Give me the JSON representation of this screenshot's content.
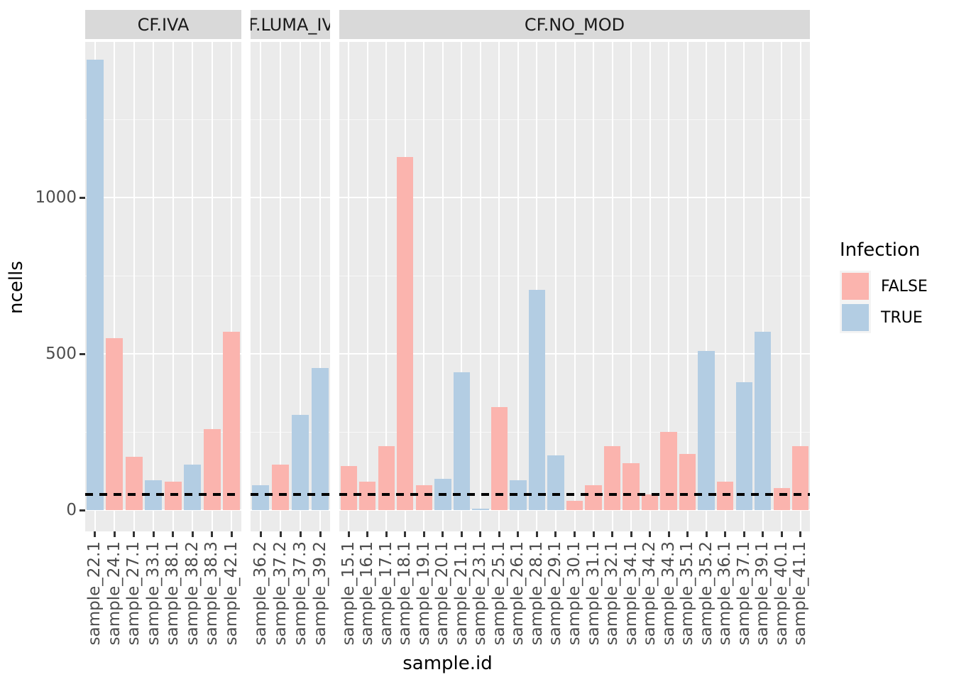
{
  "chart_data": {
    "type": "bar",
    "title": "",
    "xlabel": "sample.id",
    "ylabel": "ncells",
    "yticks": [
      0,
      500,
      1000
    ],
    "ylim": [
      -70,
      1500
    ],
    "grid": true,
    "legend_title": "Infection",
    "legend_entries": [
      "FALSE",
      "TRUE"
    ],
    "legend_position": "right",
    "series_colors": {
      "FALSE": "#FBB4AE",
      "TRUE": "#B3CDE3"
    },
    "hline": {
      "value": 50,
      "style": "dashed",
      "color": "#000000"
    },
    "facets": [
      {
        "label": "CF.IVA",
        "bars": [
          {
            "id": "sample_22.1",
            "infection": "TRUE",
            "ncells": 1440
          },
          {
            "id": "sample_24.1",
            "infection": "FALSE",
            "ncells": 550
          },
          {
            "id": "sample_27.1",
            "infection": "FALSE",
            "ncells": 170
          },
          {
            "id": "sample_33.1",
            "infection": "TRUE",
            "ncells": 95
          },
          {
            "id": "sample_38.1",
            "infection": "FALSE",
            "ncells": 90
          },
          {
            "id": "sample_38.2",
            "infection": "TRUE",
            "ncells": 145
          },
          {
            "id": "sample_38.3",
            "infection": "FALSE",
            "ncells": 260
          },
          {
            "id": "sample_42.1",
            "infection": "FALSE",
            "ncells": 570
          }
        ]
      },
      {
        "label": "CF.LUMA_IVA",
        "bars": [
          {
            "id": "sample_36.2",
            "infection": "TRUE",
            "ncells": 80
          },
          {
            "id": "sample_37.2",
            "infection": "FALSE",
            "ncells": 145
          },
          {
            "id": "sample_37.3",
            "infection": "TRUE",
            "ncells": 305
          },
          {
            "id": "sample_39.2",
            "infection": "TRUE",
            "ncells": 455
          }
        ]
      },
      {
        "label": "CF.NO_MOD",
        "bars": [
          {
            "id": "sample_15.1",
            "infection": "FALSE",
            "ncells": 140
          },
          {
            "id": "sample_16.1",
            "infection": "FALSE",
            "ncells": 90
          },
          {
            "id": "sample_17.1",
            "infection": "FALSE",
            "ncells": 205
          },
          {
            "id": "sample_18.1",
            "infection": "FALSE",
            "ncells": 1130
          },
          {
            "id": "sample_19.1",
            "infection": "FALSE",
            "ncells": 80
          },
          {
            "id": "sample_20.1",
            "infection": "TRUE",
            "ncells": 100
          },
          {
            "id": "sample_21.1",
            "infection": "TRUE",
            "ncells": 440
          },
          {
            "id": "sample_23.1",
            "infection": "TRUE",
            "ncells": 5
          },
          {
            "id": "sample_25.1",
            "infection": "FALSE",
            "ncells": 330
          },
          {
            "id": "sample_26.1",
            "infection": "TRUE",
            "ncells": 95
          },
          {
            "id": "sample_28.1",
            "infection": "TRUE",
            "ncells": 705
          },
          {
            "id": "sample_29.1",
            "infection": "TRUE",
            "ncells": 175
          },
          {
            "id": "sample_30.1",
            "infection": "FALSE",
            "ncells": 30
          },
          {
            "id": "sample_31.1",
            "infection": "FALSE",
            "ncells": 80
          },
          {
            "id": "sample_32.1",
            "infection": "FALSE",
            "ncells": 205
          },
          {
            "id": "sample_34.1",
            "infection": "FALSE",
            "ncells": 150
          },
          {
            "id": "sample_34.2",
            "infection": "FALSE",
            "ncells": 50
          },
          {
            "id": "sample_34.3",
            "infection": "FALSE",
            "ncells": 250
          },
          {
            "id": "sample_35.1",
            "infection": "FALSE",
            "ncells": 180
          },
          {
            "id": "sample_35.2",
            "infection": "TRUE",
            "ncells": 510
          },
          {
            "id": "sample_36.1",
            "infection": "FALSE",
            "ncells": 90
          },
          {
            "id": "sample_37.1",
            "infection": "TRUE",
            "ncells": 410
          },
          {
            "id": "sample_39.1",
            "infection": "TRUE",
            "ncells": 570
          },
          {
            "id": "sample_40.1",
            "infection": "FALSE",
            "ncells": 70
          },
          {
            "id": "sample_41.1",
            "infection": "FALSE",
            "ncells": 205
          }
        ]
      }
    ]
  },
  "colors": {
    "background": "#FFFFFF",
    "panel_bg": "#EBEBEB",
    "strip_bg": "#D9D9D9",
    "grid": "#FFFFFF",
    "axis_text": "#4D4D4D",
    "tick_mark": "#333333",
    "dashed_line": "#000000",
    "fill_false": "#FBB4AE",
    "fill_true": "#B3CDE3"
  }
}
